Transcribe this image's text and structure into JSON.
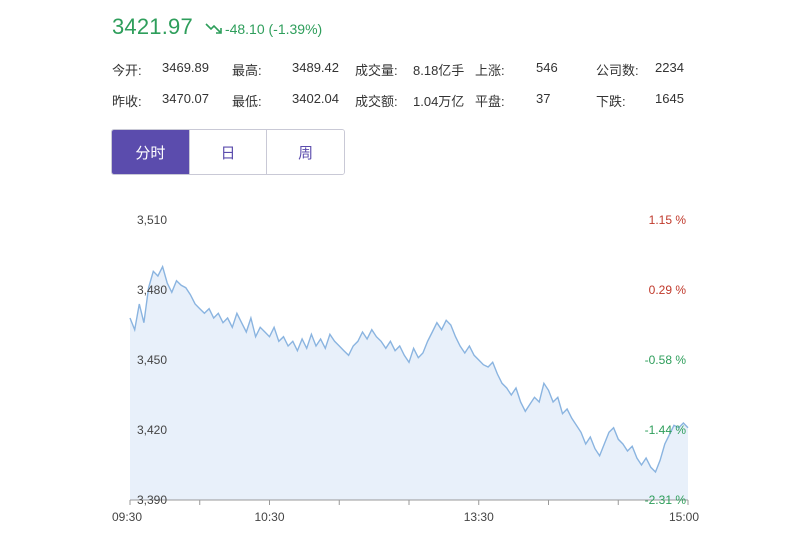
{
  "quote": {
    "price": "3421.97",
    "change": "-48.10 (-1.39%)",
    "color_down": "#2e9e5b",
    "color_up": "#c0392b"
  },
  "stats": [
    {
      "label": "今开:",
      "value": "3469.89"
    },
    {
      "label": "最高:",
      "value": "3489.42"
    },
    {
      "label": "成交量:",
      "value": "8.18亿手"
    },
    {
      "label": "上涨:",
      "value": "546"
    },
    {
      "label": "公司数:",
      "value": "2234"
    },
    {
      "label": "昨收:",
      "value": "3470.07"
    },
    {
      "label": "最低:",
      "value": "3402.04"
    },
    {
      "label": "成交额:",
      "value": "1.04万亿"
    },
    {
      "label": "平盘:",
      "value": "37"
    },
    {
      "label": "下跌:",
      "value": "1645"
    }
  ],
  "tabs": [
    {
      "label": "分时",
      "active": true
    },
    {
      "label": "日",
      "active": false
    },
    {
      "label": "周",
      "active": false
    }
  ],
  "accent": "#5b4cad",
  "chart_data": {
    "type": "area",
    "ylim": [
      3390,
      3510
    ],
    "y_ticks": [
      "3,510",
      "3,480",
      "3,450",
      "3,420",
      "3,390"
    ],
    "y_tick_values": [
      3510,
      3480,
      3450,
      3420,
      3390
    ],
    "pct_ticks": [
      "1.15 %",
      "0.29 %",
      "-0.58 %",
      "-1.44 %",
      "-2.31 %"
    ],
    "x_ticks": [
      "09:30",
      "10:30",
      "13:30",
      "15:00"
    ],
    "x_tick_positions": [
      0,
      60,
      150,
      240
    ],
    "xlim": [
      0,
      240
    ],
    "line_color": "#8ab4e0",
    "fill_color": "#e8f0fa",
    "x": [
      0,
      2,
      4,
      6,
      8,
      10,
      12,
      14,
      16,
      18,
      20,
      22,
      24,
      26,
      28,
      30,
      32,
      34,
      36,
      38,
      40,
      42,
      44,
      46,
      48,
      50,
      52,
      54,
      56,
      58,
      60,
      62,
      64,
      66,
      68,
      70,
      72,
      74,
      76,
      78,
      80,
      82,
      84,
      86,
      88,
      90,
      92,
      94,
      96,
      98,
      100,
      102,
      104,
      106,
      108,
      110,
      112,
      114,
      116,
      118,
      120,
      122,
      124,
      126,
      128,
      130,
      132,
      134,
      136,
      138,
      140,
      142,
      144,
      146,
      148,
      150,
      152,
      154,
      156,
      158,
      160,
      162,
      164,
      166,
      168,
      170,
      172,
      174,
      176,
      178,
      180,
      182,
      184,
      186,
      188,
      190,
      192,
      194,
      196,
      198,
      200,
      202,
      204,
      206,
      208,
      210,
      212,
      214,
      216,
      218,
      220,
      222,
      224,
      226,
      228,
      230,
      232,
      234,
      236,
      238,
      240
    ],
    "values": [
      3468,
      3463,
      3474,
      3466,
      3481,
      3488,
      3486,
      3490,
      3483,
      3479,
      3484,
      3482,
      3481,
      3478,
      3474,
      3472,
      3470,
      3472,
      3468,
      3470,
      3466,
      3468,
      3464,
      3470,
      3466,
      3462,
      3468,
      3460,
      3464,
      3462,
      3460,
      3464,
      3458,
      3460,
      3456,
      3458,
      3454,
      3459,
      3455,
      3461,
      3456,
      3459,
      3455,
      3461,
      3458,
      3456,
      3454,
      3452,
      3456,
      3458,
      3462,
      3459,
      3463,
      3460,
      3458,
      3455,
      3458,
      3454,
      3456,
      3452,
      3449,
      3455,
      3451,
      3453,
      3458,
      3462,
      3466,
      3463,
      3467,
      3465,
      3460,
      3456,
      3453,
      3456,
      3452,
      3450,
      3448,
      3447,
      3449,
      3444,
      3440,
      3438,
      3435,
      3438,
      3432,
      3428,
      3431,
      3434,
      3432,
      3440,
      3437,
      3432,
      3434,
      3427,
      3429,
      3425,
      3422,
      3419,
      3414,
      3417,
      3412,
      3409,
      3414,
      3419,
      3421,
      3416,
      3414,
      3411,
      3413,
      3408,
      3405,
      3408,
      3404,
      3402,
      3407,
      3414,
      3418,
      3422,
      3421,
      3423,
      3421
    ]
  }
}
